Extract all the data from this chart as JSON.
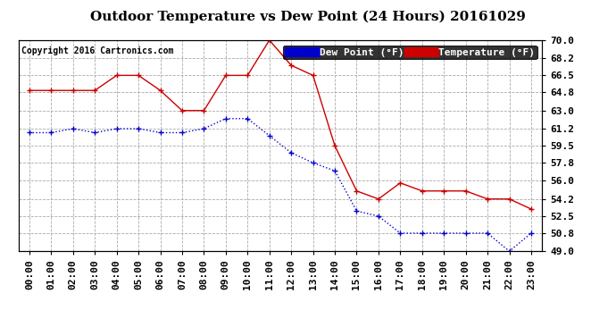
{
  "title": "Outdoor Temperature vs Dew Point (24 Hours) 20161029",
  "copyright": "Copyright 2016 Cartronics.com",
  "legend_dew": "Dew Point (°F)",
  "legend_temp": "Temperature (°F)",
  "x_labels": [
    "00:00",
    "01:00",
    "02:00",
    "03:00",
    "04:00",
    "05:00",
    "06:00",
    "07:00",
    "08:00",
    "09:00",
    "10:00",
    "11:00",
    "12:00",
    "13:00",
    "14:00",
    "15:00",
    "16:00",
    "17:00",
    "18:00",
    "19:00",
    "20:00",
    "21:00",
    "22:00",
    "23:00"
  ],
  "temperature": [
    65.0,
    65.0,
    65.0,
    65.0,
    66.5,
    66.5,
    65.0,
    63.0,
    63.0,
    66.5,
    66.5,
    70.0,
    67.5,
    66.5,
    59.5,
    55.0,
    54.2,
    55.8,
    55.0,
    55.0,
    55.0,
    54.2,
    54.2,
    53.2
  ],
  "dew_point": [
    60.8,
    60.8,
    61.2,
    60.8,
    61.2,
    61.2,
    60.8,
    60.8,
    61.2,
    62.2,
    62.2,
    60.5,
    58.8,
    57.8,
    57.0,
    53.0,
    52.5,
    50.8,
    50.8,
    50.8,
    50.8,
    50.8,
    49.0,
    50.8
  ],
  "ylim_min": 49.0,
  "ylim_max": 70.0,
  "yticks": [
    49.0,
    50.8,
    52.5,
    54.2,
    56.0,
    57.8,
    59.5,
    61.2,
    63.0,
    64.8,
    66.5,
    68.2,
    70.0
  ],
  "temp_color": "#cc0000",
  "dew_color": "#0000cc",
  "bg_color": "#ffffff",
  "grid_color": "#aaaaaa",
  "title_fontsize": 11,
  "copyright_fontsize": 7,
  "tick_fontsize": 8,
  "legend_fontsize": 8
}
